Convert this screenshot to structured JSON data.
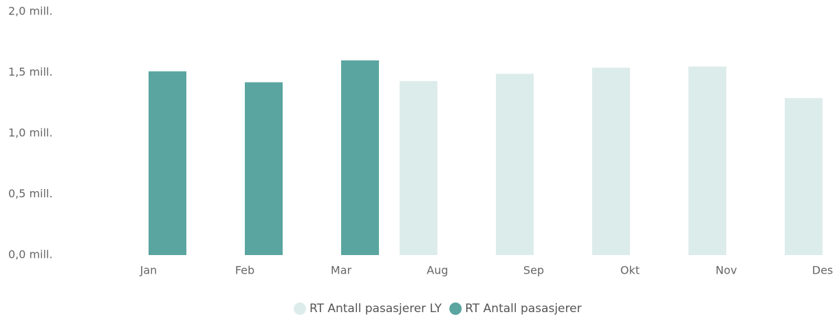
{
  "chart_data": {
    "type": "bar",
    "categories": [
      "Jan",
      "Feb",
      "Mar",
      "Aug",
      "Sep",
      "Okt",
      "Nov",
      "Des"
    ],
    "series": [
      {
        "name": "RT Antall pasasjerer LY",
        "color": "#dcecea",
        "values": [
          null,
          null,
          null,
          1.43,
          1.49,
          1.54,
          1.55,
          1.29
        ]
      },
      {
        "name": "RT Antall pasasjerer",
        "color": "#5aa5a0",
        "values": [
          1.51,
          1.42,
          1.6,
          null,
          null,
          null,
          null,
          null
        ]
      }
    ],
    "ylim": [
      0,
      2
    ],
    "yticks": [
      {
        "value": 0,
        "label": "0,0 mill."
      },
      {
        "value": 0.5,
        "label": "0,5 mill."
      },
      {
        "value": 1,
        "label": "1,0 mill."
      },
      {
        "value": 1.5,
        "label": "1,5 mill."
      },
      {
        "value": 2,
        "label": "2,0 mill."
      }
    ],
    "grid": false
  }
}
